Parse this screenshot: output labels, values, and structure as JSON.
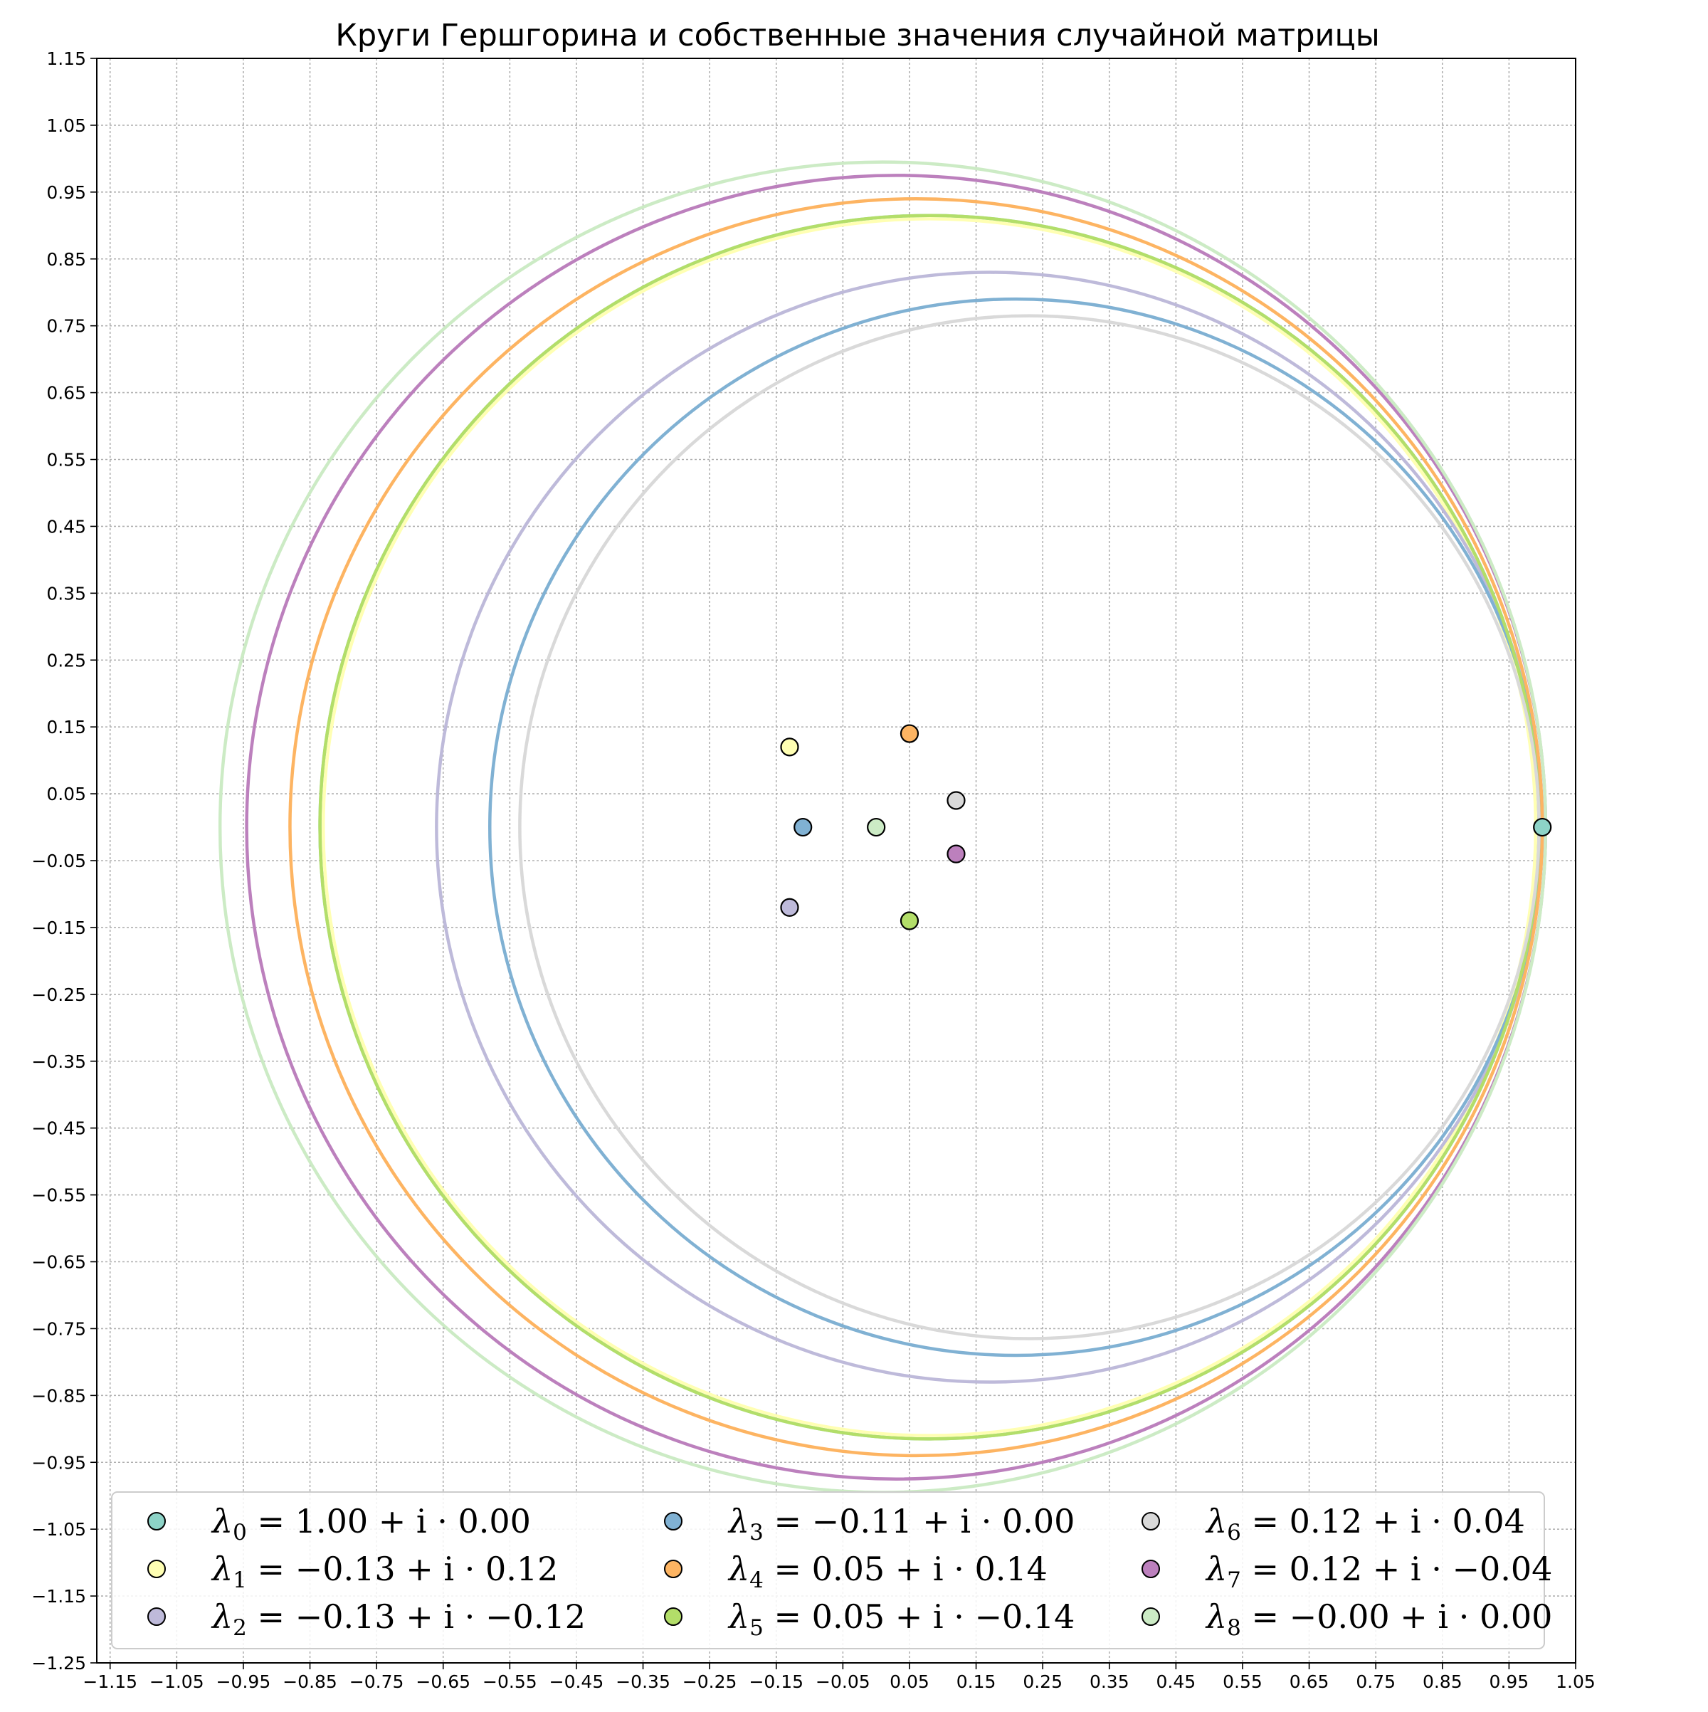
{
  "chart_data": {
    "type": "scatter",
    "title": "Круги Гершгорина и собственные значения случайной матрицы",
    "xlabel": "",
    "ylabel": "",
    "xlim": [
      -1.17,
      1.05
    ],
    "ylim": [
      -1.25,
      1.15
    ],
    "grid": true,
    "legend_position": "bottom",
    "x_ticks": [
      -1.15,
      -1.05,
      -0.95,
      -0.85,
      -0.75,
      -0.65,
      -0.55,
      -0.45,
      -0.35,
      -0.25,
      -0.15,
      -0.05,
      0.05,
      0.15,
      0.25,
      0.35,
      0.45,
      0.55,
      0.65,
      0.75,
      0.85,
      0.95,
      1.05
    ],
    "y_ticks": [
      1.15,
      1.05,
      0.95,
      0.85,
      0.75,
      0.65,
      0.55,
      0.45,
      0.35,
      0.25,
      0.15,
      0.05,
      -0.05,
      -0.15,
      -0.25,
      -0.35,
      -0.45,
      -0.55,
      -0.65,
      -0.75,
      -0.85,
      -0.95,
      -1.05,
      -1.15,
      -1.25
    ],
    "x_tick_labels": [
      "−1.15",
      "−1.05",
      "−0.95",
      "−0.85",
      "−0.75",
      "−0.65",
      "−0.55",
      "−0.45",
      "−0.35",
      "−0.25",
      "−0.15",
      "−0.05",
      "0.05",
      "0.15",
      "0.25",
      "0.35",
      "0.45",
      "0.55",
      "0.65",
      "0.75",
      "0.85",
      "0.95",
      "1.05"
    ],
    "y_tick_labels": [
      "1.15",
      "1.05",
      "0.95",
      "0.85",
      "0.75",
      "0.65",
      "0.55",
      "0.45",
      "0.35",
      "0.25",
      "0.15",
      "0.05",
      "−0.05",
      "−0.15",
      "−0.25",
      "−0.35",
      "−0.45",
      "−0.55",
      "−0.65",
      "−0.75",
      "−0.85",
      "−0.95",
      "−1.05",
      "−1.15",
      "−1.25"
    ],
    "circles": [
      {
        "center": [
          0.08,
          0.0
        ],
        "radius": 0.915,
        "color": "#8dd3c7"
      },
      {
        "center": [
          0.08,
          0.0
        ],
        "radius": 0.91,
        "color": "#ffffb3"
      },
      {
        "center": [
          0.17,
          0.0
        ],
        "radius": 0.83,
        "color": "#bebada"
      },
      {
        "center": [
          0.21,
          0.0
        ],
        "radius": 0.79,
        "color": "#80b1d3"
      },
      {
        "center": [
          0.06,
          0.0
        ],
        "radius": 0.94,
        "color": "#fdb462"
      },
      {
        "center": [
          0.08,
          0.0
        ],
        "radius": 0.915,
        "color": "#b3de69"
      },
      {
        "center": [
          0.23,
          0.0
        ],
        "radius": 0.765,
        "color": "#d9d9d9"
      },
      {
        "center": [
          0.03,
          0.0
        ],
        "radius": 0.975,
        "color": "#bc80bd"
      },
      {
        "center": [
          0.01,
          0.0
        ],
        "radius": 0.995,
        "color": "#ccebc5"
      }
    ],
    "series": [
      {
        "name": "λ0 = 1.00 + i · 0.00",
        "sub": "0",
        "rhs": "= 1.00 + i · 0.00",
        "x": 1.0,
        "y": 0.0,
        "color": "#8dd3c7"
      },
      {
        "name": "λ1 = −0.13 + i · 0.12",
        "sub": "1",
        "rhs": "= −0.13 + i · 0.12",
        "x": -0.13,
        "y": 0.12,
        "color": "#ffffb3"
      },
      {
        "name": "λ2 = −0.13 + i · −0.12",
        "sub": "2",
        "rhs": "= −0.13 + i · −0.12",
        "x": -0.13,
        "y": -0.12,
        "color": "#bebada"
      },
      {
        "name": "λ3 = −0.11 + i · 0.00",
        "sub": "3",
        "rhs": "= −0.11 + i · 0.00",
        "x": -0.11,
        "y": 0.0,
        "color": "#80b1d3"
      },
      {
        "name": "λ4 = 0.05 + i · 0.14",
        "sub": "4",
        "rhs": "= 0.05 + i · 0.14",
        "x": 0.05,
        "y": 0.14,
        "color": "#fdb462"
      },
      {
        "name": "λ5 = 0.05 + i · −0.14",
        "sub": "5",
        "rhs": "= 0.05 + i · −0.14",
        "x": 0.05,
        "y": -0.14,
        "color": "#b3de69"
      },
      {
        "name": "λ6 = 0.12 + i · 0.04",
        "sub": "6",
        "rhs": "= 0.12 + i · 0.04",
        "x": 0.12,
        "y": 0.04,
        "color": "#d9d9d9"
      },
      {
        "name": "λ7 = 0.12 + i · −0.04",
        "sub": "7",
        "rhs": "= 0.12 + i · −0.04",
        "x": 0.12,
        "y": -0.04,
        "color": "#bc80bd"
      },
      {
        "name": "λ8 = −0.00 + i · 0.00",
        "sub": "8",
        "rhs": "= −0.00 + i · 0.00",
        "x": -0.0,
        "y": 0.0,
        "color": "#ccebc5"
      }
    ]
  }
}
